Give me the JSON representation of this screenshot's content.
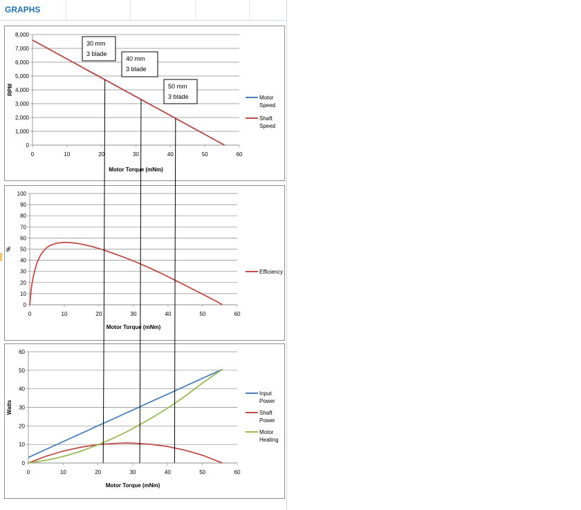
{
  "sheet": {
    "title": "GRAPHS"
  },
  "colors": {
    "blue": "#4a7ebb",
    "red": "#be4b48",
    "green": "#98b954",
    "grid": "#868686",
    "title": "#1f6fb2"
  },
  "chart_data": [
    {
      "type": "line",
      "x": [
        0,
        55.7
      ],
      "series": [
        {
          "name": "Motor Speed",
          "color": "#4a7ebb",
          "values": [
            7600,
            0
          ]
        },
        {
          "name": "Shaft Speed",
          "color": "#be4b48",
          "values": [
            7600,
            0
          ]
        }
      ],
      "title": "",
      "xlabel": "Motor Torque (mNm)",
      "ylabel": "RPM",
      "xlim": [
        0,
        60
      ],
      "ylim": [
        0,
        8000
      ],
      "xticks": [
        "0",
        "10",
        "20",
        "30",
        "40",
        "50",
        "60"
      ],
      "yticks": [
        "0",
        "1,000",
        "2,000",
        "3,000",
        "4,000",
        "5,000",
        "6,000",
        "7,000",
        "8,000"
      ],
      "grid": true,
      "legend": "right",
      "annotations": [
        {
          "line1": "30 mm",
          "line2": "3 blade"
        },
        {
          "line1": "40 mm",
          "line2": "3 blade"
        },
        {
          "line1": "50 mm",
          "line2": "3 blade"
        }
      ]
    },
    {
      "type": "line",
      "x": [
        0,
        0.5,
        1,
        2,
        3,
        4,
        5,
        6,
        8,
        10,
        11,
        12,
        14,
        16,
        18,
        20,
        22,
        25,
        28,
        30,
        32,
        35,
        38,
        40,
        42,
        44,
        46,
        48,
        50,
        52,
        54,
        55.7
      ],
      "series": [
        {
          "name": "Efficiency",
          "color": "#be4b48",
          "values": [
            0,
            16,
            25,
            37,
            44,
            48.5,
            51.5,
            53.5,
            55.5,
            56,
            56,
            55.8,
            55,
            53.8,
            52.3,
            50.5,
            48.5,
            45.3,
            41.8,
            39.3,
            36.7,
            32.6,
            28.2,
            25.2,
            22.1,
            19,
            15.8,
            12.6,
            9.5,
            6.3,
            3.1,
            0
          ]
        }
      ],
      "title": "",
      "xlabel": "Motor Torque (mNm)",
      "ylabel": "%",
      "xlim": [
        0,
        60
      ],
      "ylim": [
        0,
        100
      ],
      "xticks": [
        "0",
        "10",
        "20",
        "30",
        "40",
        "50",
        "60"
      ],
      "yticks": [
        "0",
        "10",
        "20",
        "30",
        "40",
        "50",
        "60",
        "70",
        "80",
        "90",
        "100"
      ],
      "grid": true,
      "legend": "right"
    },
    {
      "type": "line",
      "x": [
        0,
        5,
        10,
        15,
        20,
        25,
        28,
        30,
        35,
        40,
        45,
        50,
        55.7
      ],
      "series": [
        {
          "name": "Input Power",
          "color": "#4a7ebb",
          "values": [
            3,
            7.3,
            11.5,
            15.8,
            20.1,
            24.3,
            26.9,
            28.6,
            32.9,
            37.1,
            41.4,
            45.7,
            50.5
          ]
        },
        {
          "name": "Shaft Power",
          "color": "#be4b48",
          "values": [
            0,
            3.6,
            6.4,
            8.5,
            9.9,
            10.6,
            10.8,
            10.7,
            10.1,
            8.9,
            6.9,
            4.2,
            0
          ]
        },
        {
          "name": "Motor Heating",
          "color": "#98b954",
          "values": [
            0,
            1.4,
            3.5,
            6.3,
            9.8,
            13.9,
            16.6,
            18.6,
            23.8,
            29.6,
            36,
            43.1,
            50.5
          ]
        }
      ],
      "title": "",
      "xlabel": "Motor Torque (mNm)",
      "ylabel": "Watts",
      "xlim": [
        0,
        60
      ],
      "ylim": [
        0,
        60
      ],
      "xticks": [
        "0",
        "10",
        "20",
        "30",
        "40",
        "50",
        "60"
      ],
      "yticks": [
        "0",
        "10",
        "20",
        "30",
        "40",
        "50",
        "60"
      ],
      "grid": true,
      "legend": "right"
    }
  ],
  "marker_lines": [
    {
      "label": "30 mm 3 blade",
      "torque_mNm": 21
    },
    {
      "label": "40 mm 3 blade",
      "torque_mNm": 31.5
    },
    {
      "label": "50 mm 3 blade",
      "torque_mNm": 41.5
    }
  ]
}
